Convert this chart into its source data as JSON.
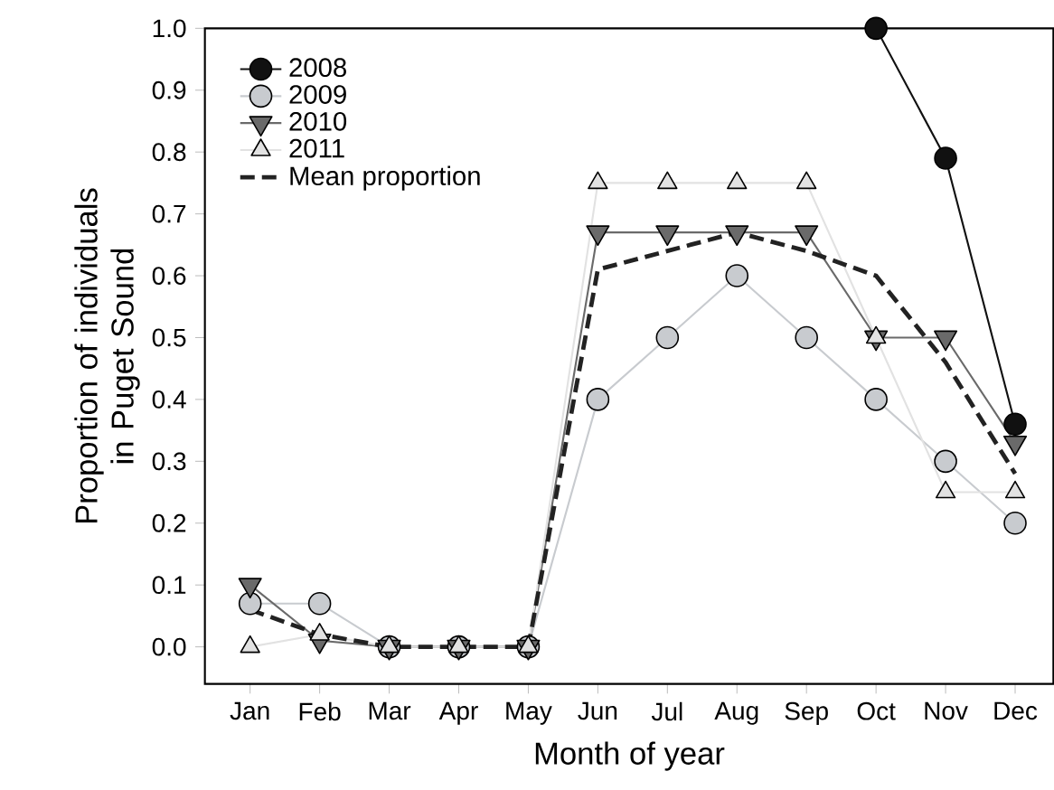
{
  "chart_data": {
    "type": "line",
    "xlabel": "Month of year",
    "ylabel": "Proportion of individuals in Puget Sound",
    "categories": [
      "Jan",
      "Feb",
      "Mar",
      "Apr",
      "May",
      "Jun",
      "Jul",
      "Aug",
      "Sep",
      "Oct",
      "Nov",
      "Dec"
    ],
    "ylim": [
      -0.06,
      1.0
    ],
    "yticks": [
      {
        "value": 0,
        "label": "0.0"
      },
      0.1,
      0.2,
      0.3,
      0.4,
      0.5,
      0.6,
      0.7,
      0.8,
      0.9,
      {
        "value": 1,
        "label": "1.0"
      }
    ],
    "grid": false,
    "legend": "top left",
    "series": [
      {
        "name": "2008",
        "color": "#111111",
        "marker": "circle",
        "values": [
          null,
          null,
          null,
          null,
          null,
          null,
          null,
          null,
          null,
          1.0,
          0.79,
          0.36
        ]
      },
      {
        "name": "2009",
        "color": "#c8cbcf",
        "marker": "circle",
        "values": [
          0.07,
          0.07,
          0,
          0,
          0,
          0.4,
          0.5,
          0.6,
          0.5,
          0.4,
          0.3,
          0.2
        ]
      },
      {
        "name": "2010",
        "color": "#6a6a6a",
        "marker": "triangle",
        "values": [
          0.1,
          0.01,
          0,
          0,
          0,
          0.67,
          0.67,
          0.67,
          0.67,
          0.5,
          0.5,
          0.33
        ]
      },
      {
        "name": "2011",
        "color": "#e2e2e2",
        "marker": "triangle",
        "values": [
          0,
          0.02,
          0,
          0,
          0,
          0.75,
          0.75,
          0.75,
          0.75,
          0.5,
          0.25,
          0.25
        ]
      },
      {
        "name": "Mean proportion",
        "color": "#222222",
        "marker": "none",
        "line_style": "dashed",
        "values": [
          0.06,
          0.02,
          0,
          0,
          0,
          0.61,
          0.64,
          0.67,
          0.64,
          0.6,
          0.46,
          0.28
        ]
      }
    ]
  }
}
